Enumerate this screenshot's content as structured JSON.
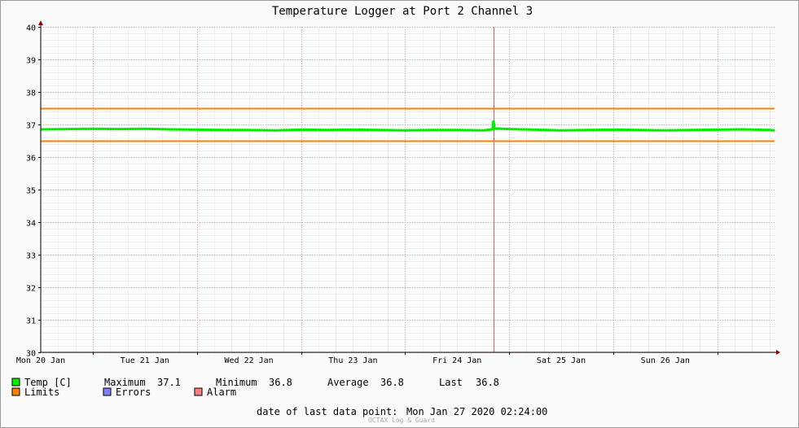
{
  "chart_data": {
    "type": "line",
    "title": "Temperature Logger at Port 2 Channel 3",
    "ylim": [
      30,
      40
    ],
    "y_ticks": [
      30,
      31,
      32,
      33,
      34,
      35,
      36,
      37,
      38,
      39,
      40
    ],
    "x_day_labels": [
      "Mon 20 Jan",
      "Tue 21 Jan",
      "Wed 22 Jan",
      "Thu 23 Jan",
      "Fri 24 Jan",
      "Sat 25 Jan",
      "Sun 26 Jan"
    ],
    "x_range_days": [
      0,
      7.05
    ],
    "marker_day": 4.35,
    "limits": [
      36.5,
      37.5
    ],
    "series": [
      {
        "name": "Temp [C]",
        "color": "#00ee00",
        "x": [
          0,
          0.25,
          0.5,
          0.75,
          1.0,
          1.25,
          1.5,
          1.75,
          2.0,
          2.25,
          2.5,
          2.75,
          3.0,
          3.25,
          3.5,
          3.75,
          4.0,
          4.25,
          4.34,
          4.35,
          4.36,
          4.5,
          4.75,
          5.0,
          5.25,
          5.5,
          5.75,
          6.0,
          6.25,
          6.5,
          6.75,
          7.0,
          7.05
        ],
        "y": [
          36.85,
          36.86,
          36.87,
          36.86,
          36.87,
          36.85,
          36.84,
          36.83,
          36.83,
          36.82,
          36.84,
          36.83,
          36.84,
          36.83,
          36.82,
          36.83,
          36.83,
          36.82,
          36.85,
          37.12,
          36.88,
          36.86,
          36.84,
          36.82,
          36.83,
          36.84,
          36.83,
          36.82,
          36.83,
          36.84,
          36.85,
          36.83,
          36.82
        ]
      }
    ]
  },
  "legend": {
    "temp_label": "Temp [C]",
    "maximum_label": "Maximum",
    "maximum_value": "37.1",
    "minimum_label": "Minimum",
    "minimum_value": "36.8",
    "average_label": "Average",
    "average_value": "36.8",
    "last_label": "Last",
    "last_value": "36.8",
    "limits_label": "Limits",
    "errors_label": "Errors",
    "alarm_label": "Alarm",
    "temp_color": "#00ee00",
    "limits_color": "#ff7f00",
    "errors_color": "#7f7fff",
    "alarm_color": "#ff7f7f"
  },
  "footer": {
    "last_point_label": "date of last data point:",
    "last_point_value": "Mon Jan 27 2020 02:24:00",
    "credit": "OCTAX Log & Guard"
  }
}
